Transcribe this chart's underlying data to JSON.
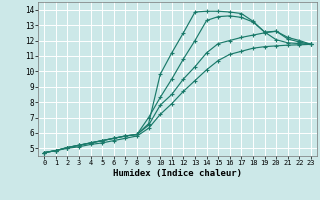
{
  "xlabel": "Humidex (Indice chaleur)",
  "bg_color": "#cce8e8",
  "grid_color": "#ffffff",
  "line_color": "#1a7a6a",
  "xlim": [
    -0.5,
    23.5
  ],
  "ylim": [
    4.5,
    14.5
  ],
  "xticks": [
    0,
    1,
    2,
    3,
    4,
    5,
    6,
    7,
    8,
    9,
    10,
    11,
    12,
    13,
    14,
    15,
    16,
    17,
    18,
    19,
    20,
    21,
    22,
    23
  ],
  "yticks": [
    5,
    6,
    7,
    8,
    9,
    10,
    11,
    12,
    13,
    14
  ],
  "lines": [
    {
      "x": [
        0,
        1,
        2,
        3,
        4,
        5,
        6,
        7,
        8,
        9,
        10,
        11,
        12,
        13,
        14,
        15,
        16,
        17,
        18,
        19,
        20,
        21,
        22,
        23
      ],
      "y": [
        4.72,
        4.85,
        5.05,
        5.2,
        5.35,
        5.5,
        5.65,
        5.8,
        5.9,
        6.6,
        9.8,
        11.2,
        12.5,
        13.85,
        13.9,
        13.9,
        13.85,
        13.75,
        13.25,
        12.55,
        12.05,
        11.85,
        11.8,
        11.75
      ]
    },
    {
      "x": [
        0,
        1,
        2,
        3,
        4,
        5,
        6,
        7,
        8,
        9,
        10,
        11,
        12,
        13,
        14,
        15,
        16,
        17,
        18,
        19,
        20,
        21,
        22,
        23
      ],
      "y": [
        4.72,
        4.85,
        5.05,
        5.2,
        5.35,
        5.5,
        5.65,
        5.8,
        5.9,
        7.0,
        8.3,
        9.5,
        10.8,
        12.0,
        13.3,
        13.55,
        13.6,
        13.5,
        13.2,
        12.55,
        12.6,
        12.2,
        12.0,
        11.75
      ]
    },
    {
      "x": [
        0,
        1,
        2,
        3,
        4,
        5,
        6,
        7,
        8,
        9,
        10,
        11,
        12,
        13,
        14,
        15,
        16,
        17,
        18,
        19,
        20,
        21,
        22,
        23
      ],
      "y": [
        4.72,
        4.85,
        5.05,
        5.2,
        5.35,
        5.5,
        5.65,
        5.8,
        5.9,
        6.5,
        7.8,
        8.5,
        9.5,
        10.3,
        11.2,
        11.8,
        12.0,
        12.2,
        12.35,
        12.5,
        12.6,
        12.1,
        11.9,
        11.75
      ]
    },
    {
      "x": [
        0,
        1,
        2,
        3,
        4,
        5,
        6,
        7,
        8,
        9,
        10,
        11,
        12,
        13,
        14,
        15,
        16,
        17,
        18,
        19,
        20,
        21,
        22,
        23
      ],
      "y": [
        4.72,
        4.85,
        5.0,
        5.1,
        5.25,
        5.35,
        5.5,
        5.65,
        5.8,
        6.3,
        7.2,
        7.9,
        8.7,
        9.4,
        10.1,
        10.7,
        11.1,
        11.3,
        11.5,
        11.6,
        11.65,
        11.7,
        11.72,
        11.75
      ]
    }
  ]
}
